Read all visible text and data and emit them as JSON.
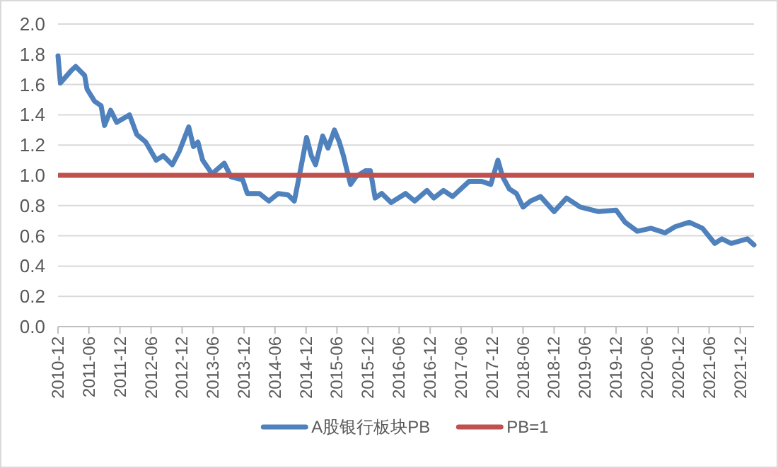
{
  "chart_data": {
    "type": "line",
    "legend": "bottom",
    "grid": "y",
    "line_style": "solid",
    "marker": "none",
    "x": [
      "2010-12-01",
      "2010-12-15",
      "2011-01-15",
      "2011-02-15",
      "2011-03-15",
      "2011-05-07",
      "2011-05-21",
      "2011-07-04",
      "2011-08-12",
      "2011-09-01",
      "2011-10-07",
      "2011-11-12",
      "2012-01-26",
      "2012-03-09",
      "2012-05-01",
      "2012-07-01",
      "2012-08-12",
      "2012-10-04",
      "2012-11-15",
      "2013-01-09",
      "2013-02-06",
      "2013-03-04",
      "2013-04-01",
      "2013-05-26",
      "2013-08-06",
      "2013-09-15",
      "2013-11-23",
      "2013-12-20",
      "2014-03-01",
      "2014-04-26",
      "2014-06-20",
      "2014-08-17",
      "2014-09-23",
      "2014-11-04",
      "2014-12-04",
      "2015-01-01",
      "2015-01-26",
      "2015-03-09",
      "2015-04-09",
      "2015-05-17",
      "2015-06-15",
      "2015-07-09",
      "2015-07-26",
      "2015-08-20",
      "2015-09-20",
      "2015-11-15",
      "2015-12-15",
      "2016-01-12",
      "2016-02-20",
      "2016-04-15",
      "2016-07-09",
      "2016-09-01",
      "2016-11-12",
      "2016-12-23",
      "2017-02-17",
      "2017-04-12",
      "2017-07-18",
      "2017-10-01",
      "2017-11-23",
      "2018-01-04",
      "2018-02-01",
      "2018-03-12",
      "2018-04-23",
      "2018-06-01",
      "2018-07-15",
      "2018-09-12",
      "2018-12-01",
      "2019-02-12",
      "2019-05-04",
      "2019-08-20",
      "2019-12-01",
      "2020-01-23",
      "2020-04-04",
      "2020-06-23",
      "2020-09-15",
      "2020-11-12",
      "2021-02-04",
      "2021-04-23",
      "2021-07-04",
      "2021-08-15",
      "2021-10-09",
      "2022-01-12",
      "2022-02-20"
    ],
    "series": [
      {
        "name": "A股银行板块PB",
        "color": "#4f81bd",
        "values": [
          1.79,
          1.61,
          1.65,
          1.69,
          1.72,
          1.66,
          1.57,
          1.49,
          1.46,
          1.33,
          1.43,
          1.35,
          1.4,
          1.27,
          1.22,
          1.1,
          1.13,
          1.07,
          1.16,
          1.32,
          1.19,
          1.22,
          1.1,
          1.01,
          1.08,
          0.99,
          0.97,
          0.88,
          0.88,
          0.83,
          0.88,
          0.87,
          0.83,
          1.07,
          1.25,
          1.13,
          1.07,
          1.26,
          1.18,
          1.3,
          1.22,
          1.13,
          1.05,
          0.94,
          0.99,
          1.03,
          1.03,
          0.85,
          0.88,
          0.82,
          0.88,
          0.83,
          0.9,
          0.85,
          0.9,
          0.86,
          0.96,
          0.96,
          0.94,
          1.1,
          0.99,
          0.91,
          0.88,
          0.79,
          0.83,
          0.86,
          0.76,
          0.85,
          0.79,
          0.76,
          0.77,
          0.69,
          0.63,
          0.65,
          0.62,
          0.66,
          0.69,
          0.65,
          0.55,
          0.58,
          0.55,
          0.58,
          0.54
        ]
      }
    ],
    "ref_lines": [
      {
        "axis": "y",
        "value": 1,
        "label": "PB=1",
        "color": "#c0504d"
      }
    ],
    "xlim": [
      "2010-12-01",
      "2022-02-20"
    ],
    "xticks": [
      "2010-12",
      "2011-06",
      "2011-12",
      "2012-06",
      "2012-12",
      "2013-06",
      "2013-12",
      "2014-06",
      "2014-12",
      "2015-06",
      "2015-12",
      "2016-06",
      "2016-12",
      "2017-06",
      "2017-12",
      "2018-06",
      "2018-12",
      "2019-06",
      "2019-12",
      "2020-06",
      "2020-12",
      "2021-06",
      "2021-12"
    ],
    "ylim": [
      0,
      2
    ],
    "yticks": [
      {
        "value": 0,
        "label": "0.0"
      },
      {
        "value": 0.2,
        "label": "0.2"
      },
      {
        "value": 0.4,
        "label": "0.4"
      },
      {
        "value": 0.6,
        "label": "0.6"
      },
      {
        "value": 0.8,
        "label": "0.8"
      },
      {
        "value": 1,
        "label": "1.0"
      },
      {
        "value": 1.2,
        "label": "1.2"
      },
      {
        "value": 1.4,
        "label": "1.4"
      },
      {
        "value": 1.6,
        "label": "1.6"
      },
      {
        "value": 1.8,
        "label": "1.8"
      },
      {
        "value": 2,
        "label": "2.0"
      }
    ]
  }
}
